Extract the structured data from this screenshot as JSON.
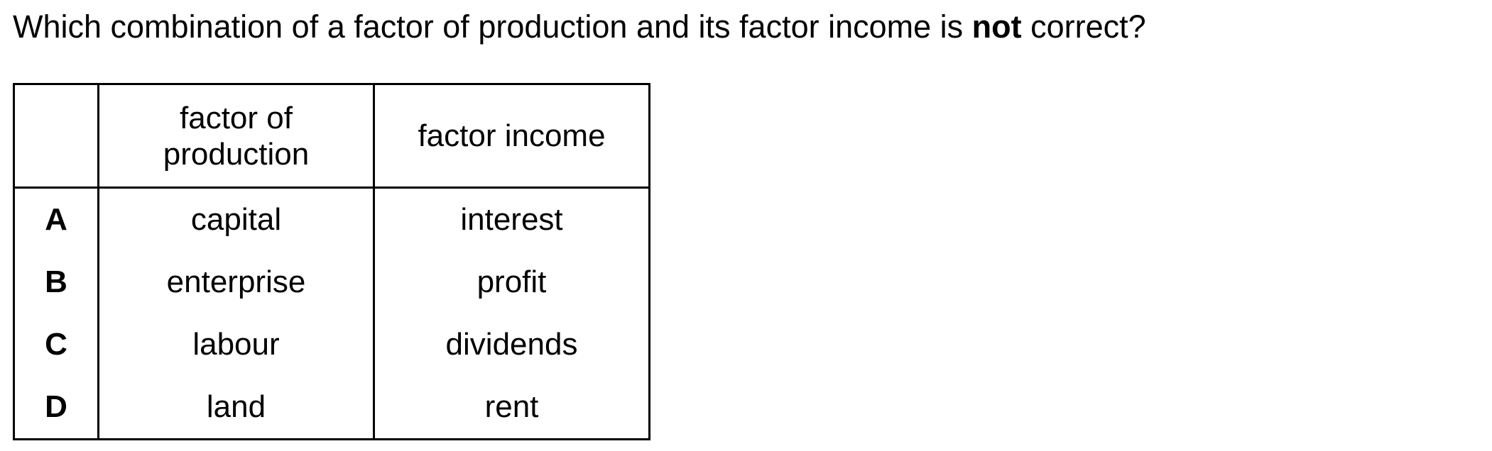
{
  "question": {
    "before": "Which combination of a factor of production and its factor income is ",
    "emphasis": "not",
    "after": " correct?"
  },
  "table": {
    "headers": {
      "key": "",
      "factor_of_production": "factor of production",
      "factor_income": "factor income"
    },
    "rows": [
      {
        "key": "A",
        "factor_of_production": "capital",
        "factor_income": "interest"
      },
      {
        "key": "B",
        "factor_of_production": "enterprise",
        "factor_income": "profit"
      },
      {
        "key": "C",
        "factor_of_production": "labour",
        "factor_income": "dividends"
      },
      {
        "key": "D",
        "factor_of_production": "land",
        "factor_income": "rent"
      }
    ]
  }
}
